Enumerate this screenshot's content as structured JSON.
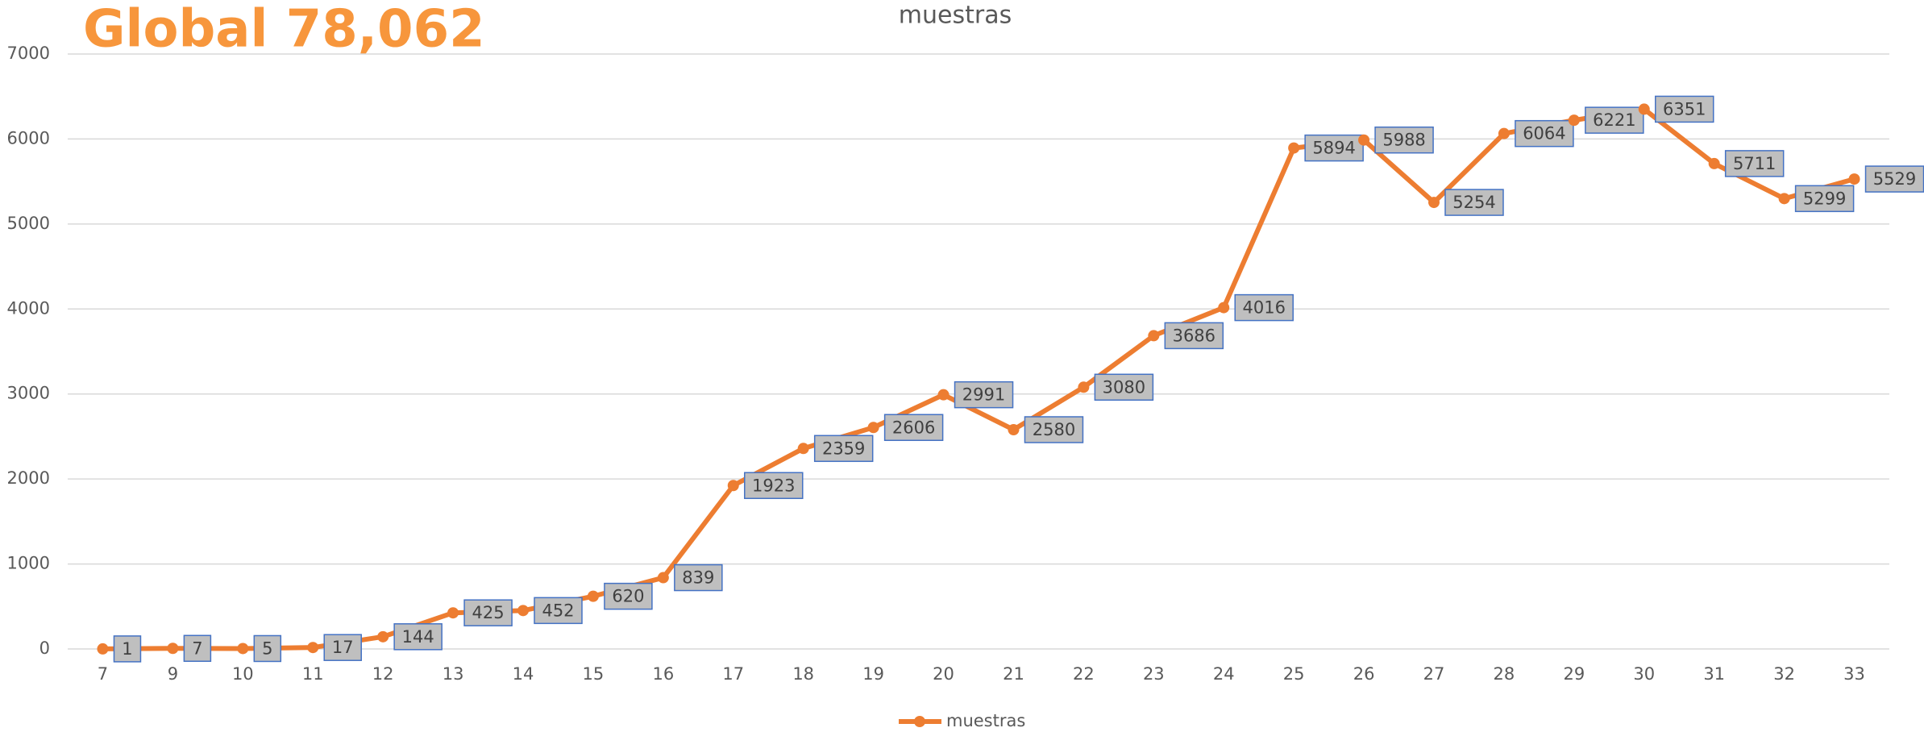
{
  "chart_data": {
    "type": "line",
    "title": "muestras",
    "annotation": "Global 78,062",
    "categories": [
      "7",
      "9",
      "10",
      "11",
      "12",
      "13",
      "14",
      "15",
      "16",
      "17",
      "18",
      "19",
      "20",
      "21",
      "22",
      "23",
      "24",
      "25",
      "26",
      "27",
      "28",
      "29",
      "30",
      "31",
      "32",
      "33"
    ],
    "series": [
      {
        "name": "muestras",
        "color": "#ed7d31",
        "values": [
          1,
          7,
          5,
          17,
          144,
          425,
          452,
          620,
          839,
          1923,
          2359,
          2606,
          2991,
          2580,
          3080,
          3686,
          4016,
          5894,
          5988,
          5254,
          6064,
          6221,
          6351,
          5711,
          5299,
          5529
        ]
      }
    ],
    "ylim": [
      0,
      7000
    ],
    "yticks": [
      0,
      1000,
      2000,
      3000,
      4000,
      5000,
      6000,
      7000
    ],
    "grid": true,
    "legend": "bottom"
  }
}
